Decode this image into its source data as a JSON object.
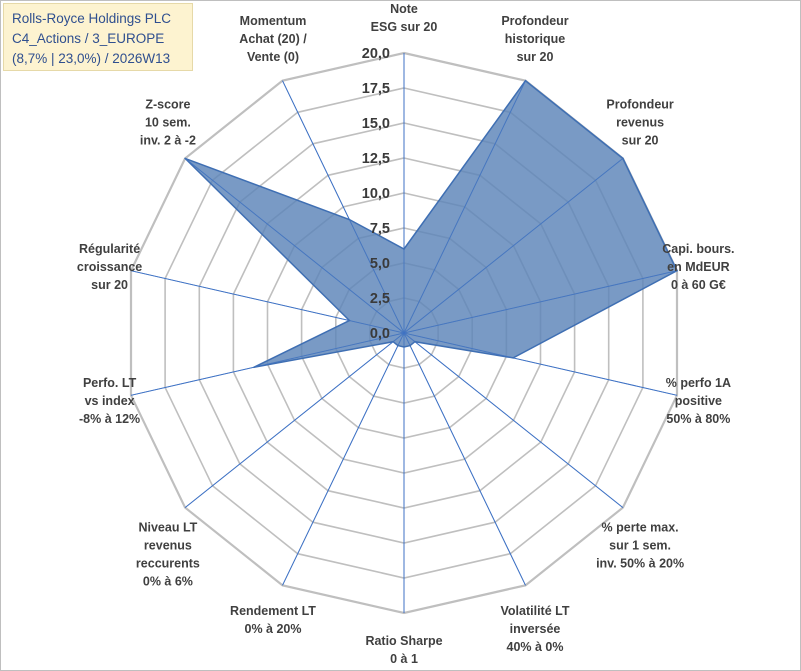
{
  "title_box": {
    "line1": "Rolls-Royce Holdings PLC",
    "line2": "C4_Actions / 3_EUROPE",
    "line3": "(8,7% | 23,0%) / 2026W13"
  },
  "colors": {
    "fill": "#5b84b8",
    "outline": "#3f6fb3",
    "grid_ring": "#bfbfbf",
    "grid_spoke": "#3f72c4",
    "text": "#404040"
  },
  "chart_data": {
    "type": "radar",
    "rmin": 0,
    "rmax": 20,
    "ticks": [
      "0,0",
      "2,5",
      "5,0",
      "7,5",
      "10,0",
      "12,5",
      "15,0",
      "17,5",
      "20,0"
    ],
    "tick_values": [
      0,
      2.5,
      5,
      7.5,
      10,
      12.5,
      15,
      17.5,
      20
    ],
    "axes": [
      {
        "label": [
          "Note",
          "ESG sur 20"
        ],
        "value": 6
      },
      {
        "label": [
          "Profondeur",
          "historique",
          "sur 20"
        ],
        "value": 20
      },
      {
        "label": [
          "Profondeur",
          "revenus",
          "sur 20"
        ],
        "value": 20
      },
      {
        "label": [
          "Capi. bours.",
          "en MdEUR",
          "0 à 60 G€"
        ],
        "value": 20
      },
      {
        "label": [
          "% perfo 1A",
          "positive",
          "50% à 80%"
        ],
        "value": 8
      },
      {
        "label": [
          "% perte max.",
          "sur 1 sem.",
          "inv. 50% à 20%"
        ],
        "value": 1
      },
      {
        "label": [
          "Volatilité LT",
          "inversée",
          "40% à 0%"
        ],
        "value": 1
      },
      {
        "label": [
          "Ratio Sharpe",
          "0 à 1"
        ],
        "value": 1
      },
      {
        "label": [
          "Rendement LT",
          "0% à 20%"
        ],
        "value": 1
      },
      {
        "label": [
          "Niveau LT",
          "revenus",
          "reccurents",
          "0% à 6%"
        ],
        "value": 1
      },
      {
        "label": [
          "Perfo. LT",
          "vs index",
          "-8% à 12%"
        ],
        "value": 11
      },
      {
        "label": [
          "Régularité",
          "croissance",
          "sur 20"
        ],
        "value": 4
      },
      {
        "label": [
          "Z-score",
          "10 sem.",
          "inv. 2 à -2"
        ],
        "value": 20
      },
      {
        "label": [
          "Momentum",
          "Achat (20) /",
          "Vente (0)"
        ],
        "value": 9
      }
    ]
  }
}
